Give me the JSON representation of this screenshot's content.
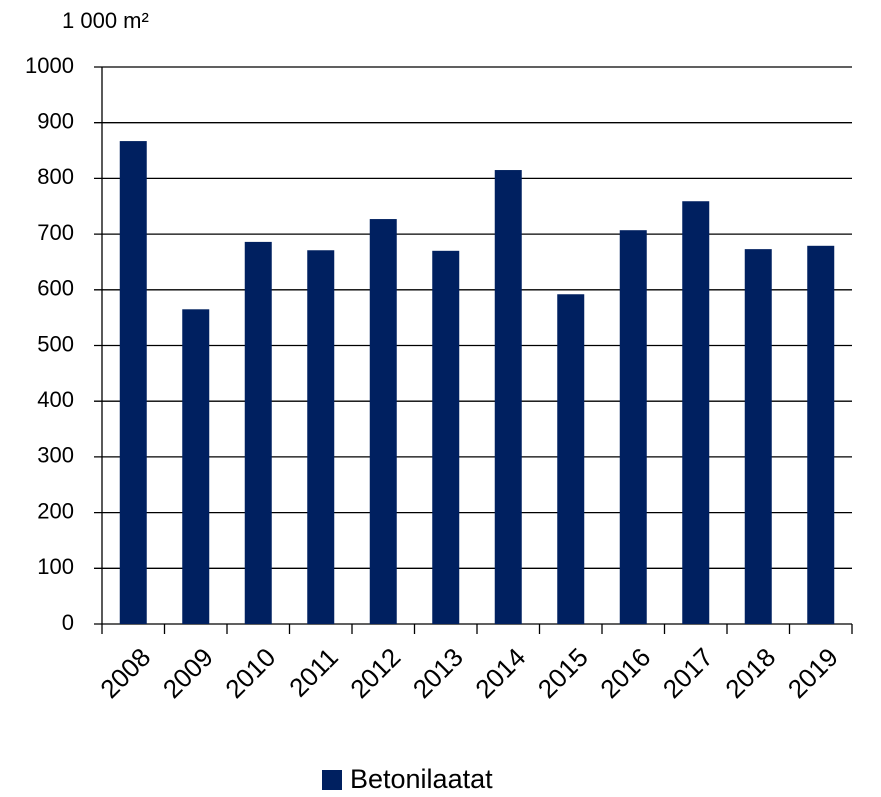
{
  "chart_data": {
    "type": "bar",
    "y_label": "1 000 m²",
    "categories": [
      "2008",
      "2009",
      "2010",
      "2011",
      "2012",
      "2013",
      "2014",
      "2015",
      "2016",
      "2017",
      "2018",
      "2019"
    ],
    "series": [
      {
        "name": "Betonilaatat",
        "color": "#002060",
        "values": [
          867,
          565,
          686,
          671,
          727,
          670,
          815,
          592,
          707,
          759,
          673,
          679
        ]
      }
    ],
    "ylim": [
      0,
      1000
    ],
    "yticks": [
      0,
      100,
      200,
      300,
      400,
      500,
      600,
      700,
      800,
      900,
      1000
    ],
    "grid": true,
    "legend": "bottom"
  }
}
